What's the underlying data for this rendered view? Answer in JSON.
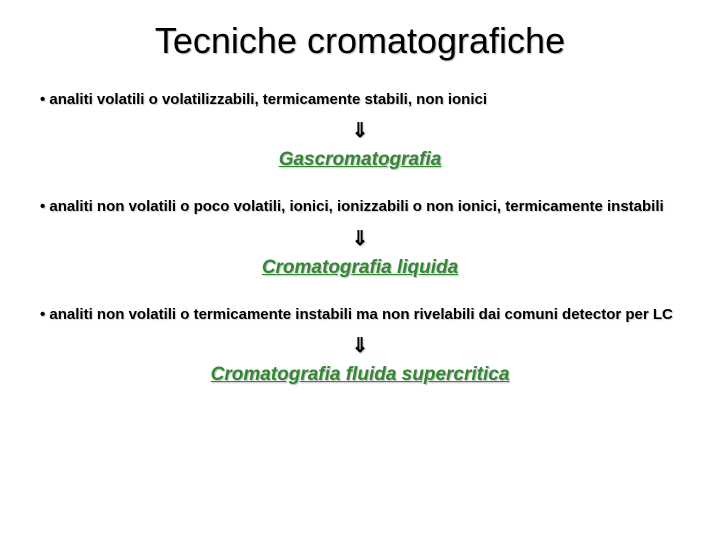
{
  "title": "Tecniche cromatografiche",
  "sections": [
    {
      "bullet": "• analiti volatili o volatilizzabili, termicamente stabili, non ionici",
      "arrow": "⇓",
      "heading": "Gascromatografia"
    },
    {
      "bullet": "• analiti non volatili o poco volatili, ionici, ionizzabili o non ionici, termicamente instabili",
      "arrow": "⇓",
      "heading": "Cromatografia liquida"
    },
    {
      "bullet": "• analiti non volatili o termicamente instabili ma non rivelabili dai comuni detector per LC",
      "arrow": "⇓",
      "heading": "Cromatografia fluida supercritica"
    }
  ],
  "colors": {
    "heading_color": "#338833",
    "text_color": "#000000",
    "background": "#ffffff",
    "shadow_color": "#bbbbbb"
  },
  "typography": {
    "font_family": "Comic Sans MS",
    "title_fontsize": 36,
    "bullet_fontsize": 15,
    "heading_fontsize": 19,
    "arrow_fontsize": 20
  }
}
